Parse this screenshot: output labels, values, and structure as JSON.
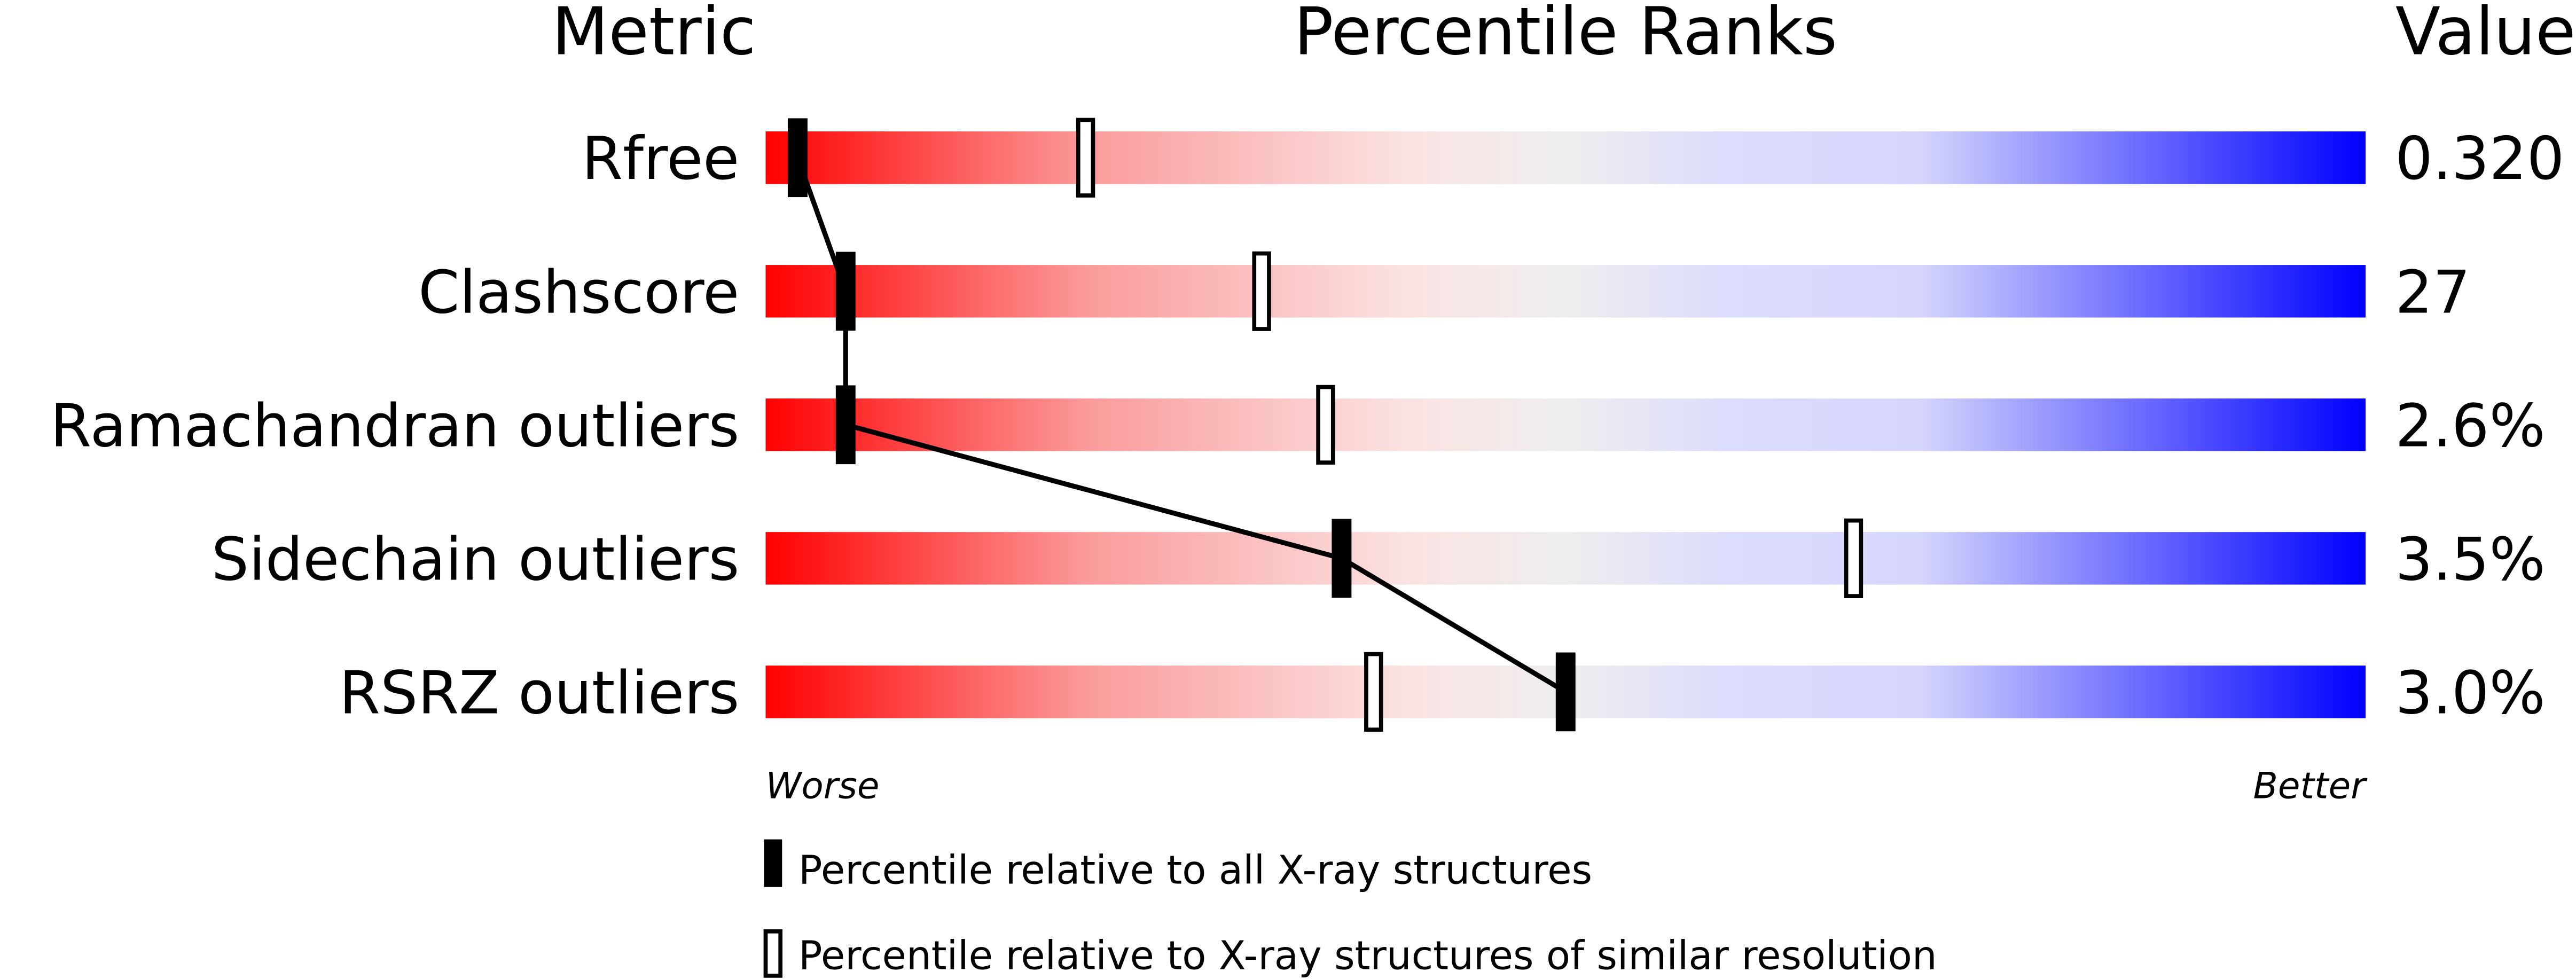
{
  "chart_data": {
    "type": "bar",
    "headers": {
      "metric": "Metric",
      "ranks": "Percentile Ranks",
      "value": "Value"
    },
    "xlim": [
      0,
      100
    ],
    "scale_labels": {
      "worse": "Worse",
      "better": "Better"
    },
    "colors": {
      "worse": "#ff0000",
      "middle": "#eeeeee",
      "better": "#0000ff"
    },
    "categories": [
      "Rfree",
      "Clashscore",
      "Ramachandran outliers",
      "Sidechain outliers",
      "RSRZ outliers"
    ],
    "values_text": [
      "0.320",
      "27",
      "2.6%",
      "3.5%",
      "3.0%"
    ],
    "series": [
      {
        "name": "Percentile relative to all X-ray structures",
        "marker": "filled",
        "values": [
          2,
          5,
          5,
          36,
          50
        ]
      },
      {
        "name": "Percentile relative to X-ray structures of similar resolution",
        "marker": "open",
        "values": [
          20,
          31,
          35,
          68,
          38
        ]
      }
    ]
  }
}
